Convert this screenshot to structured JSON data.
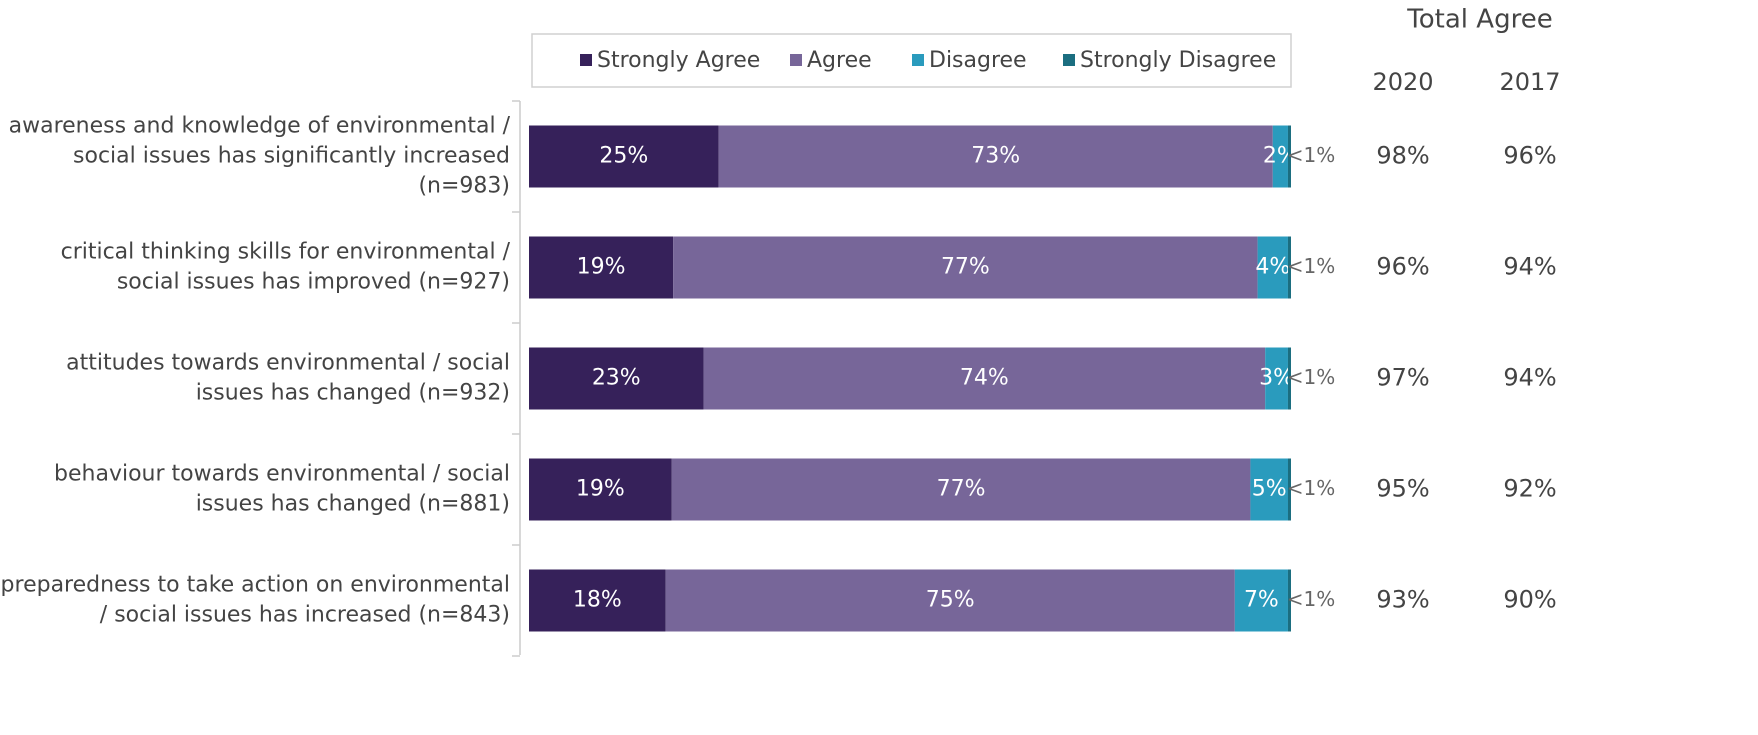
{
  "chart_data": {
    "type": "stacked-barh",
    "categories": [
      "awareness and knowledge of environmental /\nsocial issues has significantly increased\n(n=983)",
      "critical thinking skills for environmental /\nsocial issues has improved (n=927)",
      "attitudes towards environmental / social\nissues has changed (n=932)",
      "behaviour towards environmental / social\nissues has changed (n=881)",
      "preparedness to take action on environmental\n/ social issues has increased (n=843)"
    ],
    "series": [
      {
        "name": "Strongly Agree",
        "color": "#36215a",
        "values": [
          25,
          19,
          23,
          19,
          18
        ],
        "value_labels": [
          "25%",
          "19%",
          "23%",
          "19%",
          "18%"
        ]
      },
      {
        "name": "Agree",
        "color": "#776699",
        "values": [
          73,
          77,
          74,
          77,
          75
        ],
        "value_labels": [
          "73%",
          "77%",
          "74%",
          "77%",
          "75%"
        ]
      },
      {
        "name": "Disagree",
        "color": "#2a9bbd",
        "values": [
          2,
          4,
          3,
          5,
          7
        ],
        "value_labels": [
          "2%",
          "4%",
          "3%",
          "5%",
          "7%"
        ]
      },
      {
        "name": "Strongly Disagree",
        "color": "#1b6e80",
        "values": [
          0.4,
          0.4,
          0.4,
          0.4,
          0.4
        ],
        "value_labels": [
          "<1%",
          "<1%",
          "<1%",
          "<1%",
          "<1%"
        ]
      }
    ],
    "legend": "top",
    "total_agree": {
      "title": "Total Agree",
      "columns": [
        "2020",
        "2017"
      ],
      "rows": [
        [
          "98%",
          "96%"
        ],
        [
          "96%",
          "94%"
        ],
        [
          "97%",
          "94%"
        ],
        [
          "95%",
          "92%"
        ],
        [
          "93%",
          "90%"
        ]
      ]
    }
  }
}
